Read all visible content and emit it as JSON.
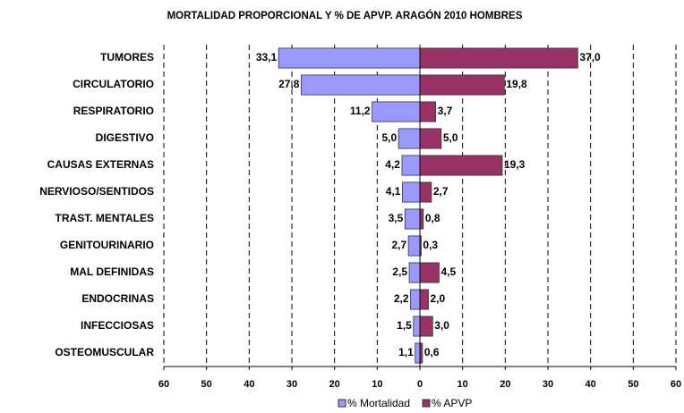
{
  "chart_data": {
    "type": "butterfly-bar",
    "title": "MORTALIDAD PROPORCIONAL Y % DE APVP.   ARAGÓN 2010   HOMBRES",
    "categories": [
      "TUMORES",
      "CIRCULATORIO",
      "RESPIRATORIO",
      "DIGESTIVO",
      "CAUSAS EXTERNAS",
      "NERVIOSO/SENTIDOS",
      "TRAST. MENTALES",
      "GENITOURINARIO",
      "MAL DEFINIDAS",
      "ENDOCRINAS",
      "INFECCIOSAS",
      "OSTEOMUSCULAR"
    ],
    "series": [
      {
        "name": "% Mortalidad",
        "color": "#9999ff",
        "axis": "left",
        "values": [
          33.1,
          27.8,
          11.2,
          5.0,
          4.2,
          4.1,
          3.5,
          2.7,
          2.5,
          2.2,
          1.5,
          1.1
        ],
        "value_labels": [
          "33,1",
          "27,8",
          "11,2",
          "5,0",
          "4,2",
          "4,1",
          "3,5",
          "2,7",
          "2,5",
          "2,2",
          "1,5",
          "1,1"
        ]
      },
      {
        "name": "% APVP",
        "color": "#993366",
        "axis": "right",
        "values": [
          37.0,
          19.8,
          3.7,
          5.0,
          19.3,
          2.7,
          0.8,
          0.3,
          4.5,
          2.0,
          3.0,
          0.6
        ],
        "value_labels": [
          "37,0",
          "19,8",
          "3,7",
          "5,0",
          "19,3",
          "2,7",
          "0,8",
          "0,3",
          "4,5",
          "2,0",
          "3,0",
          "0,6"
        ]
      }
    ],
    "xlim_left": [
      60,
      0
    ],
    "xticks_left": [
      60,
      50,
      40,
      30,
      20,
      10
    ],
    "xlim_right": [
      0,
      60
    ],
    "xticks_right": [
      0,
      10,
      20,
      30,
      40,
      50,
      60
    ],
    "grid": true,
    "legend": "bottom"
  }
}
